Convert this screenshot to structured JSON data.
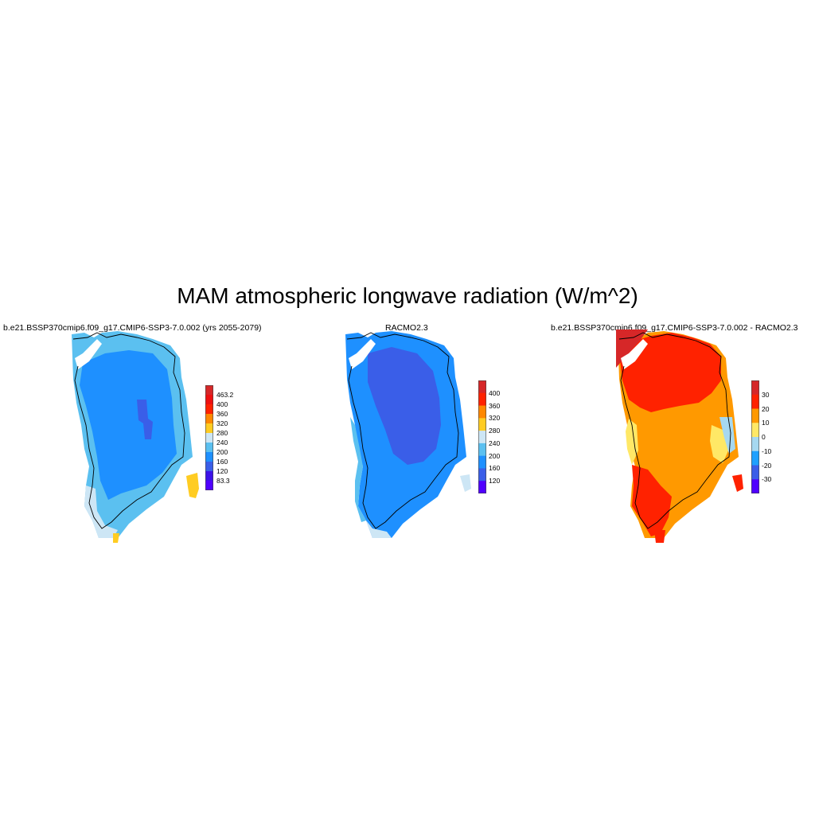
{
  "title": "MAM atmospheric longwave radiation (W/m^2)",
  "panels": [
    {
      "title": "b.e21.BSSP370cmip6.f09_g17.CMIP6-SSP3-7.0.002 (yrs 2055-2079)",
      "colorbar": {
        "labels": [
          "463.2",
          "400",
          "360",
          "320",
          "280",
          "240",
          "200",
          "160",
          "120",
          "83.3"
        ],
        "colors": [
          "#d62728",
          "#ee1111",
          "#ff2200",
          "#ff8800",
          "#ffcc22",
          "#cde6f5",
          "#5bc0f0",
          "#1e90ff",
          "#3a5ee8",
          "#3c12e8",
          "#5000ff"
        ]
      }
    },
    {
      "title": "RACMO2.3",
      "colorbar": {
        "labels": [
          "400",
          "360",
          "320",
          "280",
          "240",
          "200",
          "160",
          "120"
        ],
        "colors": [
          "#d62728",
          "#ff2200",
          "#ff8800",
          "#ffcc22",
          "#cde6f5",
          "#5bc0f0",
          "#1e90ff",
          "#3a5ee8",
          "#5000ff"
        ]
      }
    },
    {
      "title": "b.e21.BSSP370cmip6.f09_g17.CMIP6-SSP3-7.0.002 - RACMO2.3",
      "colorbar": {
        "labels": [
          "30",
          "20",
          "10",
          "0",
          "-10",
          "-20",
          "-30"
        ],
        "colors": [
          "#d62728",
          "#ff2200",
          "#ff9900",
          "#ffe866",
          "#a6d8f0",
          "#1ea0ff",
          "#3a5ee8",
          "#5000ff"
        ]
      }
    }
  ]
}
